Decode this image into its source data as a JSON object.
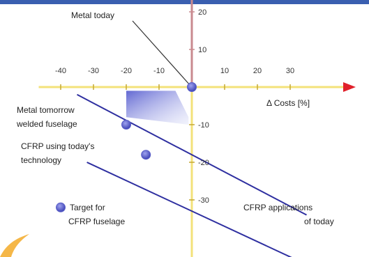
{
  "chart_data": {
    "type": "scatter",
    "title": "",
    "xlabel": "Δ Costs [%]",
    "ylabel": "",
    "xlim": [
      -45,
      48
    ],
    "ylim": [
      -48,
      28
    ],
    "x_ticks": [
      {
        "value": -40,
        "label": "-40"
      },
      {
        "value": -30,
        "label": "-30"
      },
      {
        "value": -20,
        "label": "-20"
      },
      {
        "value": -10,
        "label": "-10"
      },
      {
        "value": 10,
        "label": "10"
      },
      {
        "value": 20,
        "label": "20"
      },
      {
        "value": 30,
        "label": "30"
      }
    ],
    "y_ticks": [
      {
        "value": 20,
        "label": "20"
      },
      {
        "value": 10,
        "label": "10"
      },
      {
        "value": -10,
        "label": "-10"
      },
      {
        "value": -20,
        "label": "-20"
      },
      {
        "value": -30,
        "label": "-30"
      }
    ],
    "points": [
      {
        "name": "Metal today",
        "x": 0,
        "y": 0
      },
      {
        "name": "Metal tomorrow welded fuselage",
        "x": -20,
        "y": -10
      },
      {
        "name": "CFRP using today's technology",
        "x": -14,
        "y": -18
      },
      {
        "name": "Target for CFRP fuselage",
        "x": -40,
        "y": -32
      }
    ],
    "annotations": {
      "metal_today": "Metal today",
      "metal_tomorrow_1": "Metal tomorrow",
      "metal_tomorrow_2": "welded fuselage",
      "cfrp_today_1": "CFRP using today's",
      "cfrp_today_2": "technology",
      "target_1": "Target for",
      "target_2": "CFRP fuselage",
      "applications_1": "CFRP applications",
      "applications_2": "of today"
    },
    "trend_lines": [
      {
        "from": [
          -35,
          -2
        ],
        "to": [
          35,
          -34
        ]
      },
      {
        "from": [
          -32,
          -20
        ],
        "to": [
          37,
          -48
        ]
      }
    ],
    "shaded_region": [
      [
        -20,
        -1
      ],
      [
        -5,
        -1
      ],
      [
        -1,
        -8
      ],
      [
        -1,
        -10
      ],
      [
        -20,
        -8
      ]
    ],
    "colors": {
      "x_axis": "#f3e27a",
      "y_axis": "#c98a8f",
      "arrow": "#e0202a",
      "points": "#5a5fc8",
      "trend": "#2e2fa0",
      "shade": "#5b61d0",
      "header": "#3a5fb0"
    }
  }
}
